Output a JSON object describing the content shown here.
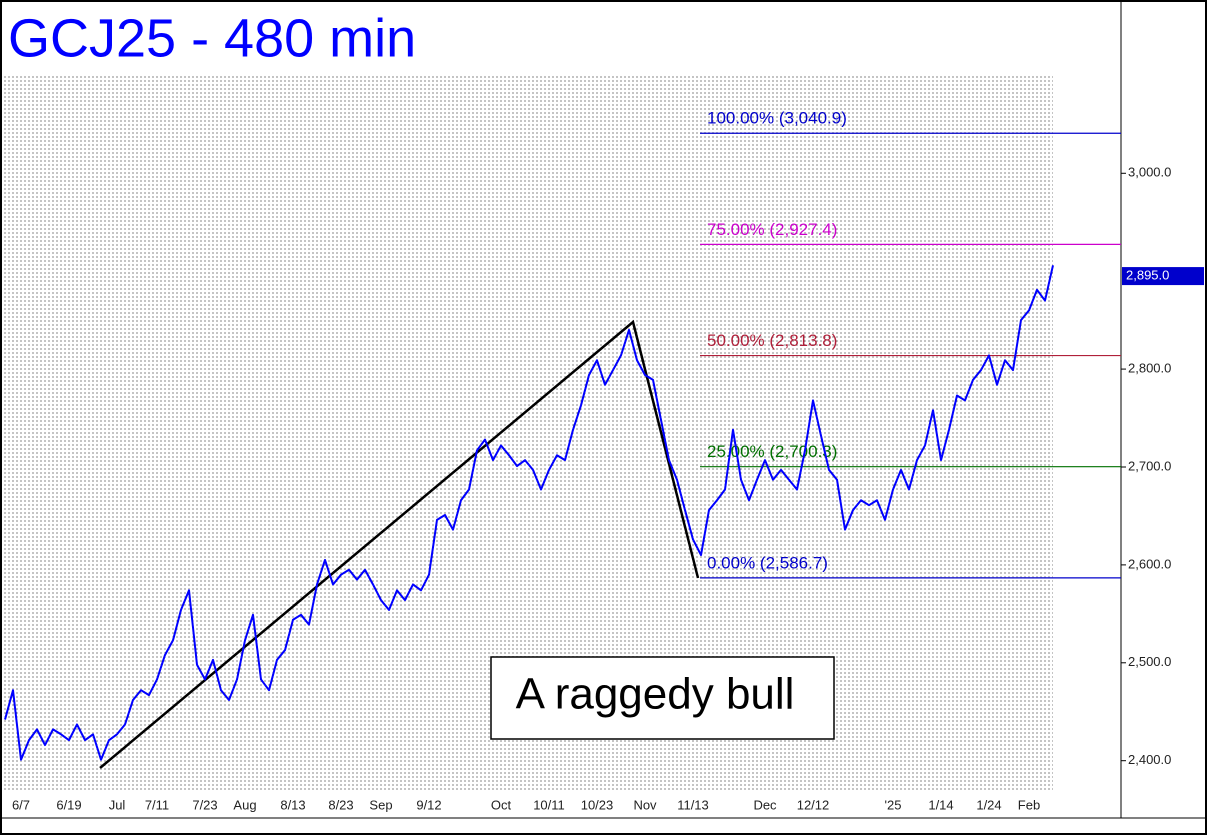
{
  "chart_data": {
    "type": "line",
    "title": "GCJ25 - 480 min",
    "annotation": "A raggedy bull",
    "categories": [
      null,
      null,
      "6/7",
      null,
      null,
      null,
      null,
      null,
      "6/19",
      null,
      null,
      null,
      null,
      null,
      "Jul",
      null,
      null,
      null,
      null,
      "7/11",
      null,
      null,
      null,
      null,
      null,
      "7/23",
      null,
      null,
      null,
      null,
      "Aug",
      null,
      null,
      null,
      null,
      null,
      "8/13",
      null,
      null,
      null,
      null,
      null,
      "8/23",
      null,
      null,
      null,
      null,
      "Sep",
      null,
      null,
      null,
      null,
      null,
      "9/12",
      null,
      null,
      null,
      null,
      null,
      null,
      null,
      null,
      "Oct",
      null,
      null,
      null,
      null,
      null,
      "10/11",
      null,
      null,
      null,
      null,
      null,
      "10/23",
      null,
      null,
      null,
      null,
      null,
      "Nov",
      null,
      null,
      null,
      null,
      null,
      "11/13",
      null,
      null,
      null,
      null,
      null,
      null,
      null,
      null,
      "Dec",
      null,
      null,
      null,
      null,
      null,
      "12/12",
      null,
      null,
      null,
      null,
      null,
      null,
      null,
      null,
      null,
      "'25",
      null,
      null,
      null,
      null,
      null,
      "1/14",
      null,
      null,
      null,
      null,
      null,
      "1/24",
      null,
      null,
      null,
      null,
      "Feb",
      null,
      null,
      null
    ],
    "series": [
      {
        "color": "#0000ff",
        "values": [
          2442,
          2472,
          2401,
          2421,
          2432,
          2416,
          2432,
          2427,
          2421,
          2437,
          2421,
          2427,
          2401,
          2421,
          2427,
          2437,
          2462,
          2472,
          2467,
          2483,
          2508,
          2523,
          2554,
          2574,
          2498,
          2483,
          2503,
          2472,
          2462,
          2483,
          2523,
          2549,
          2483,
          2472,
          2503,
          2513,
          2544,
          2549,
          2539,
          2580,
          2605,
          2580,
          2590,
          2595,
          2585,
          2595,
          2580,
          2564,
          2554,
          2574,
          2564,
          2580,
          2574,
          2590,
          2646,
          2651,
          2636,
          2666,
          2677,
          2717,
          2728,
          2707,
          2722,
          2712,
          2701,
          2707,
          2697,
          2677,
          2697,
          2712,
          2707,
          2738,
          2763,
          2794,
          2809,
          2784,
          2799,
          2814,
          2840,
          2809,
          2794,
          2789,
          2748,
          2707,
          2687,
          2656,
          2626,
          2610,
          2656,
          2666,
          2677,
          2738,
          2687,
          2666,
          2687,
          2707,
          2687,
          2697,
          2687,
          2677,
          2717,
          2768,
          2732,
          2697,
          2687,
          2636,
          2656,
          2666,
          2661,
          2666,
          2646,
          2677,
          2697,
          2677,
          2707,
          2722,
          2758,
          2707,
          2738,
          2773,
          2768,
          2789,
          2799,
          2814,
          2784,
          2809,
          2799,
          2850,
          2860,
          2881,
          2870,
          2906
        ]
      }
    ],
    "ylim": [
      2367,
      3177
    ],
    "yticks": [
      {
        "value": 2400,
        "label": "2,400.0"
      },
      {
        "value": 2500,
        "label": "2,500.0"
      },
      {
        "value": 2600,
        "label": "2,600.0"
      },
      {
        "value": 2700,
        "label": "2,700.0"
      },
      {
        "value": 2800,
        "label": "2,800.0"
      },
      {
        "value": 3000,
        "label": "3,000.0"
      }
    ],
    "last_price": {
      "value": 2895,
      "label": "2,895.0",
      "color": "#0000cc"
    },
    "levels": [
      {
        "label": "100.00% (3,040.9)",
        "value": 3040.9,
        "color": "#0000cc"
      },
      {
        "label": "75.00% (2,927.4)",
        "value": 2927.4,
        "color": "#cc00cc"
      },
      {
        "label": "50.00% (2,813.8)",
        "value": 2813.8,
        "color": "#b0203a"
      },
      {
        "label": "25.00% (2,700.3)",
        "value": 2700.3,
        "color": "#007000"
      },
      {
        "label": "0.00% (2,586.7)",
        "value": 2586.7,
        "color": "#0000cc"
      }
    ]
  }
}
